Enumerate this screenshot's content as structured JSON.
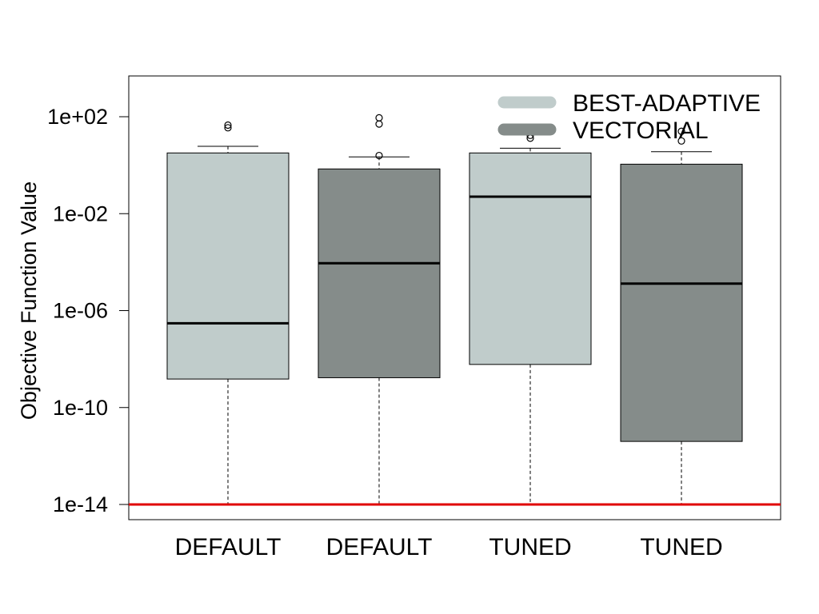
{
  "chart_data": {
    "type": "box",
    "title": "",
    "xlabel": "",
    "ylabel": "Objective Function Value",
    "y_scale": "log10",
    "ylim": [
      3.2e-15,
      5000.0
    ],
    "yticks": [
      {
        "value": 100.0,
        "label": "1e+02"
      },
      {
        "value": 0.01,
        "label": "1e-02"
      },
      {
        "value": 1e-06,
        "label": "1e-06"
      },
      {
        "value": 1e-10,
        "label": "1e-10"
      },
      {
        "value": 1e-14,
        "label": "1e-14"
      }
    ],
    "categories": [
      "DEFAULT",
      "DEFAULT",
      "TUNED",
      "TUNED"
    ],
    "series": [
      {
        "name": "BEST-ADAPTIVE",
        "color": "#c0cccb"
      },
      {
        "name": "VECTORIAL",
        "color": "#858c8a"
      }
    ],
    "boxes": [
      {
        "category": "DEFAULT",
        "series": "BEST-ADAPTIVE",
        "whisker_low": 1e-14,
        "q1": 1.5e-09,
        "median": 3e-07,
        "q3": 3.2,
        "whisker_high": 6,
        "outliers": [
          35,
          45
        ]
      },
      {
        "category": "DEFAULT",
        "series": "VECTORIAL",
        "whisker_low": 1e-14,
        "q1": 1.7e-09,
        "median": 9e-05,
        "q3": 0.7,
        "whisker_high": 2.2,
        "outliers": [
          2.5,
          50,
          90
        ]
      },
      {
        "category": "TUNED",
        "series": "BEST-ADAPTIVE",
        "whisker_low": 1e-14,
        "q1": 6e-09,
        "median": 0.05,
        "q3": 3.2,
        "whisker_high": 5,
        "outliers": [
          13,
          17
        ]
      },
      {
        "category": "TUNED",
        "series": "VECTORIAL",
        "whisker_low": 1e-14,
        "q1": 4e-12,
        "median": 1.3e-05,
        "q3": 1.1,
        "whisker_high": 3.6,
        "outliers": [
          10,
          25
        ]
      }
    ],
    "reference_line": {
      "value": 1e-14,
      "color": "#e00000"
    },
    "legend": {
      "position": "top-right"
    },
    "grid": false
  }
}
